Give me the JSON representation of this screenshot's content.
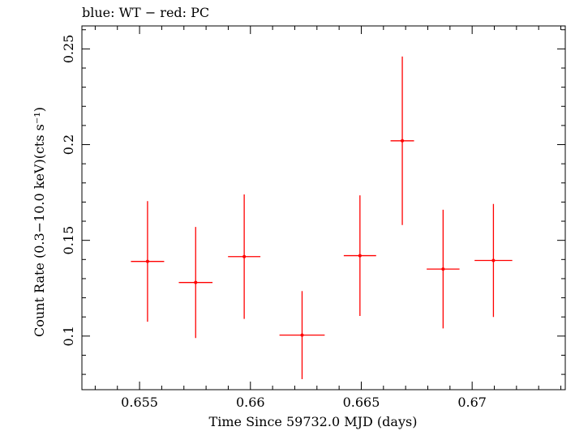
{
  "header_label": "blue: WT − red: PC",
  "colors": {
    "pc": "#ff0000",
    "wt": "#0000ff",
    "axes": "#000000",
    "background": "#ffffff"
  },
  "chart_data": {
    "type": "scatter",
    "title": "blue: WT − red: PC",
    "xlabel": "Time Since 59732.0 MJD (days)",
    "ylabel": "Count Rate (0.3−10.0 keV)(cts s⁻¹)",
    "xlim": [
      0.6524,
      0.6742
    ],
    "ylim": [
      0.072,
      0.262
    ],
    "xticks": [
      0.655,
      0.66,
      0.665,
      0.67
    ],
    "xtick_labels": [
      "0.655",
      "0.66",
      "0.665",
      "0.67"
    ],
    "xminor_step": 0.001,
    "yticks": [
      0.1,
      0.15,
      0.2,
      0.25
    ],
    "ytick_labels": [
      "0.1",
      "0.15",
      "0.2",
      "0.25"
    ],
    "yminor_step": 0.01,
    "grid": false,
    "series": [
      {
        "name": "PC",
        "color": "#ff0000",
        "points": [
          {
            "x": 0.65536,
            "xerr": 0.00075,
            "y": 0.139,
            "yerr": 0.0315
          },
          {
            "x": 0.65753,
            "xerr": 0.00076,
            "y": 0.128,
            "yerr": 0.029
          },
          {
            "x": 0.65972,
            "xerr": 0.00073,
            "y": 0.1415,
            "yerr": 0.0325
          },
          {
            "x": 0.66233,
            "xerr": 0.00102,
            "y": 0.1005,
            "yerr": 0.023
          },
          {
            "x": 0.66494,
            "xerr": 0.00073,
            "y": 0.142,
            "yerr": 0.0315
          },
          {
            "x": 0.66685,
            "xerr": 0.00053,
            "y": 0.202,
            "yerr": 0.044
          },
          {
            "x": 0.66869,
            "xerr": 0.00074,
            "y": 0.135,
            "yerr": 0.031
          },
          {
            "x": 0.67096,
            "xerr": 0.00085,
            "y": 0.1395,
            "yerr": 0.0295
          }
        ]
      }
    ]
  }
}
